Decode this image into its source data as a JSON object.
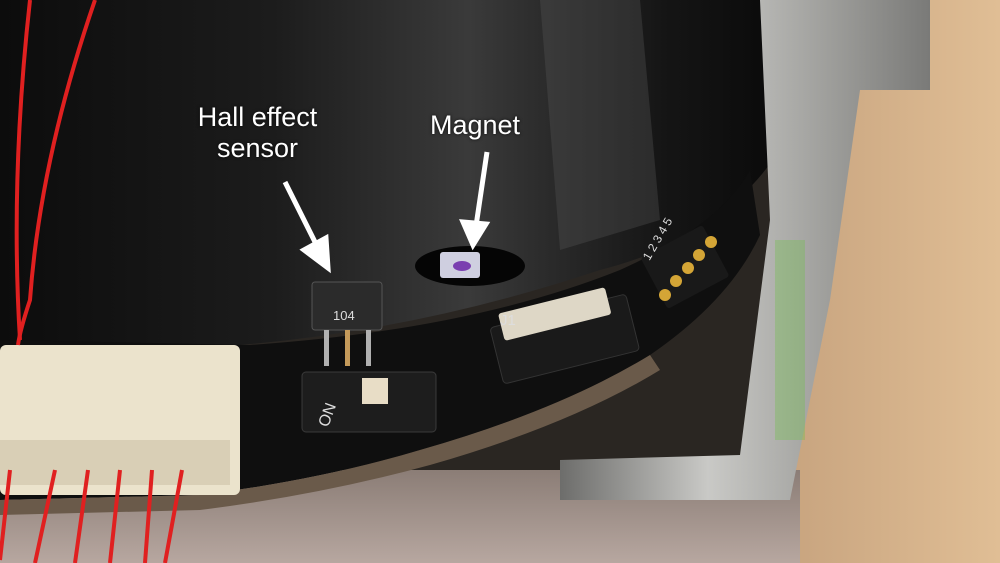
{
  "annotations": {
    "hall_sensor_line1": "Hall effect",
    "hall_sensor_line2": "sensor",
    "magnet": "Magnet"
  },
  "board": {
    "chip_marking": "104",
    "switch_marking": "ON",
    "connector_marking": "J1",
    "pin_numbers": "1 2 3 4 5"
  },
  "colors": {
    "motor_body": "#141414",
    "pcb": "#0d0d0d",
    "metal_bracket": "#a9a9a7",
    "wires": "#e02020",
    "connector": "#ece4cf",
    "annotation_text": "#ffffff"
  }
}
